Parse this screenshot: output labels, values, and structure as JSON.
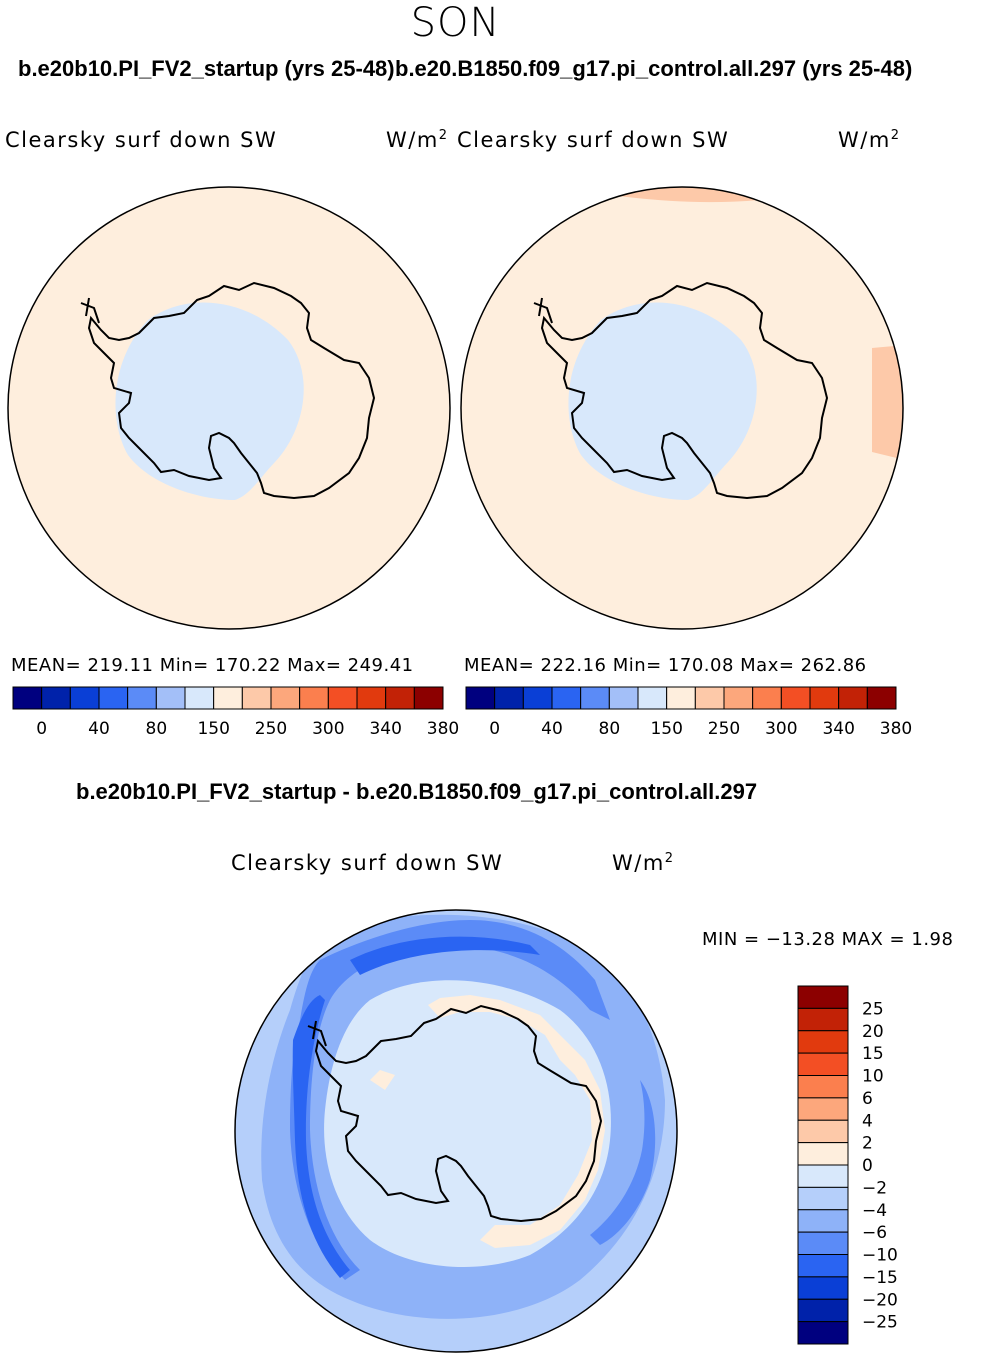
{
  "season": "SON",
  "titles": {
    "left": "b.e20b10.PI_FV2_startup (yrs 25-48)",
    "right": "b.e20.B1850.f09_g17.pi_control.all.297 (yrs 25-48)",
    "diff": "b.e20b10.PI_FV2_startup - b.e20.B1850.f09_g17.pi_control.all.297"
  },
  "variable": "Clearsky surf down SW",
  "units": "W/m",
  "units_exp": "2",
  "chart_data": [
    {
      "type": "heatmap",
      "name": "model-a",
      "title": "b.e20b10.PI_FV2_startup (yrs 25-48)",
      "variable": "Clearsky surf down SW",
      "units": "W/m2",
      "projection": "south-polar-stereographic",
      "stats": {
        "mean": "219.11",
        "min": "170.22",
        "max": "249.41"
      },
      "stats_text": "MEAN= 219.11   Min= 170.22   Max= 249.41",
      "colorbar": {
        "orientation": "horizontal",
        "colors": [
          "#00007f",
          "#0022aa",
          "#0a3fd6",
          "#2a64f2",
          "#5b8bf7",
          "#a3bff8",
          "#d8e8fb",
          "#feeedd",
          "#fdc9a9",
          "#fca77c",
          "#fb7f4e",
          "#f34f24",
          "#e13a0e",
          "#c22206",
          "#8c0000"
        ],
        "tick_labels": [
          "0",
          "40",
          "80",
          "150",
          "250",
          "300",
          "340",
          "380"
        ]
      },
      "regions": [
        {
          "label": "ocean",
          "color": "#feeedd"
        },
        {
          "label": "interior",
          "color": "#d8e8fb"
        }
      ]
    },
    {
      "type": "heatmap",
      "name": "model-b",
      "title": "b.e20.B1850.f09_g17.pi_control.all.297 (yrs 25-48)",
      "variable": "Clearsky surf down SW",
      "units": "W/m2",
      "projection": "south-polar-stereographic",
      "stats": {
        "mean": "222.16",
        "min": "170.08",
        "max": "262.86"
      },
      "stats_text": "MEAN= 222.16   Min= 170.08   Max= 262.86",
      "colorbar": {
        "orientation": "horizontal",
        "colors": [
          "#00007f",
          "#0022aa",
          "#0a3fd6",
          "#2a64f2",
          "#5b8bf7",
          "#a3bff8",
          "#d8e8fb",
          "#feeedd",
          "#fdc9a9",
          "#fca77c",
          "#fb7f4e",
          "#f34f24",
          "#e13a0e",
          "#c22206",
          "#8c0000"
        ],
        "tick_labels": [
          "0",
          "40",
          "80",
          "150",
          "250",
          "300",
          "340",
          "380"
        ]
      },
      "regions": [
        {
          "label": "ocean",
          "color": "#feeedd"
        },
        {
          "label": "interior",
          "color": "#d8e8fb"
        },
        {
          "label": "northern-edge",
          "color": "#fdc9a9"
        }
      ]
    },
    {
      "type": "heatmap",
      "name": "difference",
      "title": "b.e20b10.PI_FV2_startup - b.e20.B1850.f09_g17.pi_control.all.297",
      "variable": "Clearsky surf down SW",
      "units": "W/m2",
      "projection": "south-polar-stereographic",
      "stats": {
        "min": "-13.28",
        "max": "1.98"
      },
      "stats_text": "MIN = −13.28 MAX =    1.98",
      "colorbar": {
        "orientation": "vertical",
        "colors_top_to_bottom": [
          "#8c0000",
          "#c22206",
          "#e13a0e",
          "#f34f24",
          "#fb7f4e",
          "#fca77c",
          "#fdc9a9",
          "#feeedd",
          "#d8e8fb",
          "#b5cffa",
          "#8eb2f8",
          "#5b8bf7",
          "#2a64f2",
          "#0a3fd6",
          "#0022aa",
          "#00007f"
        ],
        "tick_labels": [
          "25",
          "20",
          "15",
          "10",
          "6",
          "4",
          "2",
          "0",
          "−2",
          "−4",
          "−6",
          "−10",
          "−15",
          "−20",
          "−25"
        ]
      },
      "regions": [
        {
          "label": "near-zero",
          "color": "#d8e8fb"
        },
        {
          "label": "-2 to -4",
          "color": "#b5cffa"
        },
        {
          "label": "-4 to -6",
          "color": "#8eb2f8"
        },
        {
          "label": "-6 to -10",
          "color": "#5b8bf7"
        },
        {
          "label": "-10 to -15",
          "color": "#2a64f2"
        },
        {
          "label": "coastal 0 to 2",
          "color": "#feeedd"
        }
      ]
    }
  ]
}
